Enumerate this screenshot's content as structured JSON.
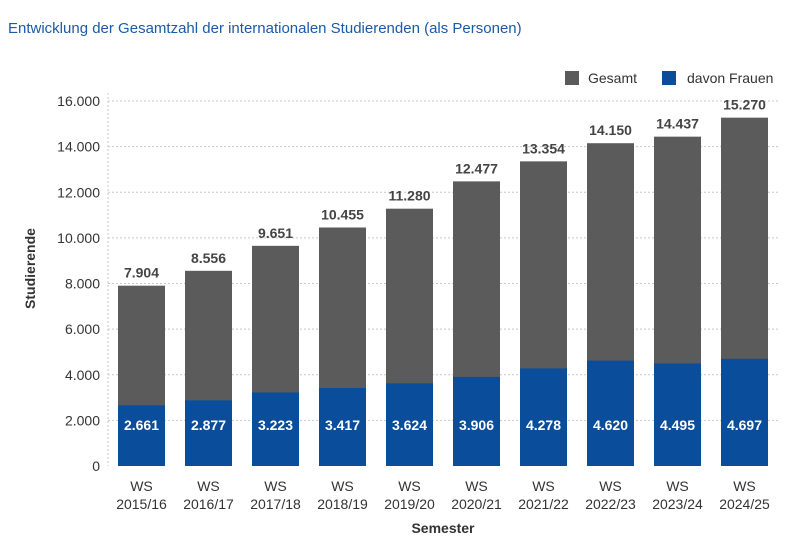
{
  "title": "Entwicklung der Gesamtzahl der internationalen Studierenden (als Personen)",
  "colors": {
    "total": "#5b5b5b",
    "women": "#0a4e9b",
    "grid": "#c8c8c8",
    "title": "#1a5aa6"
  },
  "chart_data": {
    "type": "bar",
    "stacked_overlay": true,
    "xlabel": "Semester",
    "ylabel": "Studierende",
    "ylim": [
      0,
      16000
    ],
    "yticks": [
      "0",
      "2.000",
      "4.000",
      "6.000",
      "8.000",
      "10.000",
      "12.000",
      "14.000",
      "16.000"
    ],
    "ytick_values": [
      0,
      2000,
      4000,
      6000,
      8000,
      10000,
      12000,
      14000,
      16000
    ],
    "grid": true,
    "legend_position": "top-right",
    "categories": [
      [
        "WS",
        "2015/16"
      ],
      [
        "WS",
        "2016/17"
      ],
      [
        "WS",
        "2017/18"
      ],
      [
        "WS",
        "2018/19"
      ],
      [
        "WS",
        "2019/20"
      ],
      [
        "WS",
        "2020/21"
      ],
      [
        "WS",
        "2021/22"
      ],
      [
        "WS",
        "2022/23"
      ],
      [
        "WS",
        "2023/24"
      ],
      [
        "WS",
        "2024/25"
      ]
    ],
    "series": [
      {
        "name": "Gesamt",
        "values": [
          7904,
          8556,
          9651,
          10455,
          11280,
          12477,
          13354,
          14150,
          14437,
          15270
        ],
        "labels": [
          "7.904",
          "8.556",
          "9.651",
          "10.455",
          "11.280",
          "12.477",
          "13.354",
          "14.150",
          "14.437",
          "15.270"
        ]
      },
      {
        "name": "davon Frauen",
        "values": [
          2661,
          2877,
          3223,
          3417,
          3624,
          3906,
          4278,
          4620,
          4495,
          4697
        ],
        "labels": [
          "2.661",
          "2.877",
          "3.223",
          "3.417",
          "3.624",
          "3.906",
          "4.278",
          "4.620",
          "4.495",
          "4.697"
        ]
      }
    ]
  }
}
